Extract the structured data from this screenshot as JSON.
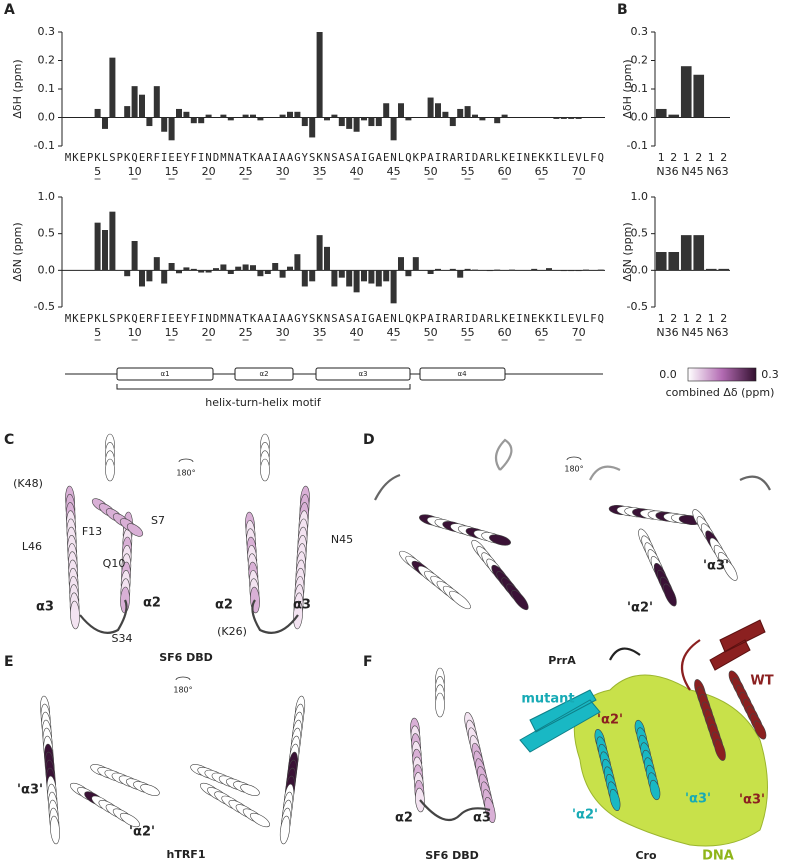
{
  "chart_data": [
    {
      "type": "bar",
      "ylabel": "ΔδH (ppm)",
      "color": "#333333",
      "categories": [
        "M",
        "K",
        "E",
        "P",
        "K",
        "L",
        "S",
        "P",
        "K",
        "Q",
        "E",
        "R",
        "F",
        "I",
        "E",
        "E",
        "Y",
        "F",
        "I",
        "N",
        "D",
        "M",
        "N",
        "A",
        "T",
        "K",
        "A",
        "A",
        "I",
        "A",
        "A",
        "G",
        "Y",
        "S",
        "K",
        "N",
        "S",
        "A",
        "S",
        "A",
        "I",
        "G",
        "A",
        "E",
        "N",
        "L",
        "Q",
        "K",
        "P",
        "A",
        "I",
        "R",
        "A",
        "R",
        "I",
        "D",
        "A",
        "R",
        "L",
        "K",
        "E",
        "I",
        "N",
        "E",
        "K",
        "K",
        "I",
        "L",
        "E",
        "V",
        "L",
        "F",
        "Q"
      ],
      "values": [
        null,
        null,
        null,
        null,
        0.03,
        -0.04,
        0.21,
        null,
        0.04,
        0.11,
        0.08,
        -0.03,
        0.11,
        -0.05,
        -0.08,
        0.03,
        0.02,
        -0.02,
        -0.02,
        0.01,
        0,
        0.01,
        -0.01,
        0,
        0.01,
        0.01,
        -0.01,
        0,
        0,
        0.01,
        0.02,
        0.02,
        -0.03,
        -0.07,
        0.3,
        -0.01,
        0.01,
        -0.03,
        -0.04,
        -0.05,
        -0.01,
        -0.03,
        -0.03,
        0.05,
        -0.08,
        0.05,
        -0.01,
        0,
        null,
        0.07,
        0.05,
        0.02,
        -0.03,
        0.03,
        0.04,
        0.01,
        -0.01,
        0,
        -0.02,
        0.01,
        0,
        0,
        0,
        0,
        0,
        0,
        -0.005,
        -0.005,
        -0.005,
        -0.005,
        0,
        0,
        0
      ],
      "xticks": [
        5,
        10,
        15,
        20,
        25,
        30,
        35,
        40,
        45,
        50,
        55,
        60,
        65,
        70
      ],
      "ylim": [
        -0.1,
        0.3
      ],
      "yticks": [
        -0.1,
        {
          "value": 0,
          "label": "0.0"
        },
        0.1,
        0.2,
        0.3
      ]
    },
    {
      "type": "bar",
      "ylabel": "ΔδN (ppm)",
      "color": "#333333",
      "categories": [
        "M",
        "K",
        "E",
        "P",
        "K",
        "L",
        "S",
        "P",
        "K",
        "Q",
        "E",
        "R",
        "F",
        "I",
        "E",
        "E",
        "Y",
        "F",
        "I",
        "N",
        "D",
        "M",
        "N",
        "A",
        "T",
        "K",
        "A",
        "A",
        "I",
        "A",
        "A",
        "G",
        "Y",
        "S",
        "K",
        "N",
        "S",
        "A",
        "S",
        "A",
        "I",
        "G",
        "A",
        "E",
        "N",
        "L",
        "Q",
        "K",
        "P",
        "A",
        "I",
        "R",
        "A",
        "R",
        "I",
        "D",
        "A",
        "R",
        "L",
        "K",
        "E",
        "I",
        "N",
        "E",
        "K",
        "K",
        "I",
        "L",
        "E",
        "V",
        "L",
        "F",
        "Q"
      ],
      "values": [
        null,
        null,
        null,
        null,
        0.65,
        0.55,
        0.8,
        null,
        -0.08,
        0.4,
        -0.22,
        -0.15,
        0.18,
        -0.18,
        0.1,
        -0.04,
        0.04,
        0.02,
        -0.03,
        -0.03,
        0.03,
        0.08,
        -0.05,
        0.05,
        0.08,
        0.07,
        -0.08,
        -0.05,
        0.1,
        -0.1,
        0.05,
        0.22,
        -0.22,
        -0.15,
        0.48,
        0.32,
        -0.22,
        -0.1,
        -0.22,
        -0.3,
        -0.15,
        -0.18,
        -0.22,
        -0.15,
        -0.45,
        0.18,
        -0.08,
        0.18,
        null,
        -0.05,
        0.02,
        0,
        0.02,
        -0.1,
        0.02,
        0.01,
        0,
        -0.01,
        0.01,
        0,
        0.01,
        0,
        0,
        0.02,
        0,
        0.03,
        0,
        -0.01,
        -0.01,
        -0.01,
        0.01,
        0,
        0.01
      ],
      "xticks": [
        5,
        10,
        15,
        20,
        25,
        30,
        35,
        40,
        45,
        50,
        55,
        60,
        65,
        70
      ],
      "ylim": [
        -0.5,
        1.0
      ],
      "yticks": [
        -0.5,
        {
          "value": 0,
          "label": "0.0"
        },
        0.5,
        {
          "value": 1.0,
          "label": "1.0"
        }
      ]
    },
    {
      "type": "bar",
      "ylabel": "ΔδH (ppm)",
      "color": "#333333",
      "categories": [
        "1",
        "2",
        "1",
        "2",
        "1",
        "2"
      ],
      "groups": [
        "N36",
        "N45",
        "N63"
      ],
      "values": [
        0.03,
        0.01,
        0.18,
        0.15,
        null,
        null
      ],
      "ylim": [
        -0.1,
        0.3
      ],
      "yticks": [
        -0.1,
        {
          "value": 0,
          "label": "0.0"
        },
        0.1,
        0.2,
        0.3
      ]
    },
    {
      "type": "bar",
      "ylabel": "ΔδN (ppm)",
      "color": "#333333",
      "categories": [
        "1",
        "2",
        "1",
        "2",
        "1",
        "2"
      ],
      "groups": [
        "N36",
        "N45",
        "N63"
      ],
      "values": [
        0.25,
        0.25,
        0.48,
        0.48,
        0.02,
        0.02
      ],
      "ylim": [
        -0.5,
        1.0
      ],
      "yticks": [
        -0.5,
        {
          "value": 0,
          "label": "0.0"
        },
        0.5,
        {
          "value": 1.0,
          "label": "1.0"
        }
      ]
    }
  ],
  "panel_labels": [
    "A",
    "B",
    "C",
    "D",
    "E",
    "F"
  ],
  "helix_diagram": {
    "helices": [
      "α1",
      "α2",
      "α3",
      "α4"
    ],
    "motif": "helix-turn-helix motif"
  },
  "colorbar": {
    "min": "0.0",
    "max": "0.3",
    "label": "combined Δδ (ppm)"
  },
  "C": {
    "rotation": "180°",
    "labels": [
      "(K48)",
      "S7",
      "F13",
      "L46",
      "Q10",
      "N45",
      "α3",
      "α2",
      "S34",
      "α2",
      "α3",
      "(K26)"
    ],
    "caption": "SF6 DBD"
  },
  "D": {
    "rotation": "180°",
    "labels": [
      "'α3'",
      "'α2'"
    ],
    "caption": "PrrA"
  },
  "E": {
    "rotation": "180°",
    "labels": [
      "'α3'",
      "'α2'"
    ],
    "caption": "hTRF1"
  },
  "F": {
    "labels": [
      "α2",
      "α3",
      "mutant",
      "WT",
      "'α2'",
      "'α2'",
      "'α3'",
      "'α3'",
      "DNA"
    ],
    "captions": [
      "SF6 DBD",
      "Cro"
    ]
  }
}
